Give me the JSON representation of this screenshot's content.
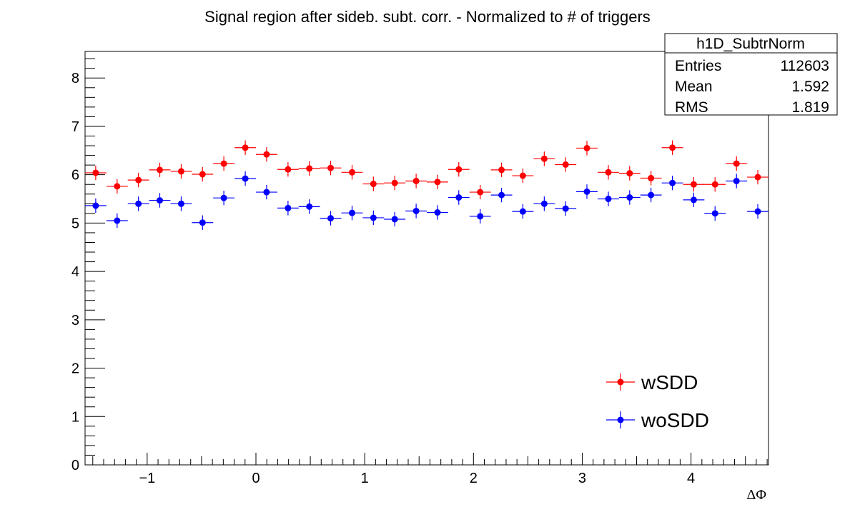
{
  "chart_data": {
    "type": "scatter",
    "title": "Signal region after sideb. subt. corr. - Normalized to # of triggers",
    "xlabel": "ΔΦ",
    "ylabel": "",
    "xlim": [
      -1.5708,
      4.7124
    ],
    "ylim": [
      0,
      8.55
    ],
    "xticks": [
      -1,
      0,
      1,
      2,
      3,
      4
    ],
    "xtick_labels": [
      "−1",
      "0",
      "1",
      "2",
      "3",
      "4"
    ],
    "yticks": [
      0,
      1,
      2,
      3,
      4,
      5,
      6,
      7,
      8
    ],
    "ytick_labels": [
      "0",
      "1",
      "2",
      "3",
      "4",
      "5",
      "6",
      "7",
      "8"
    ],
    "grid": false,
    "legend_position": "bottom-right",
    "stats_box": {
      "name": "h1D_SubtrNorm",
      "rows": [
        {
          "label": "Entries",
          "value": "112603"
        },
        {
          "label": "Mean",
          "value": "1.592"
        },
        {
          "label": "RMS",
          "value": "1.819"
        }
      ]
    },
    "bin_width": 0.1963,
    "x": [
      -1.473,
      -1.276,
      -1.08,
      -0.884,
      -0.687,
      -0.491,
      -0.295,
      -0.098,
      0.098,
      0.295,
      0.491,
      0.687,
      0.884,
      1.08,
      1.276,
      1.473,
      1.669,
      1.865,
      2.062,
      2.258,
      2.454,
      2.651,
      2.847,
      3.043,
      3.24,
      3.436,
      3.632,
      3.829,
      4.025,
      4.221,
      4.418,
      4.614
    ],
    "series": [
      {
        "name": "wSDD",
        "color": "#ff0000",
        "values": [
          6.04,
          5.76,
          5.89,
          6.1,
          6.07,
          6.01,
          6.23,
          6.56,
          6.42,
          6.11,
          6.13,
          6.14,
          6.05,
          5.81,
          5.83,
          5.87,
          5.85,
          6.11,
          5.64,
          6.1,
          5.98,
          6.33,
          6.21,
          6.55,
          6.05,
          6.03,
          5.93,
          6.56,
          5.8,
          5.8,
          6.23,
          5.95
        ],
        "errors": [
          0.15,
          0.15,
          0.15,
          0.15,
          0.15,
          0.15,
          0.15,
          0.15,
          0.15,
          0.15,
          0.15,
          0.15,
          0.15,
          0.15,
          0.15,
          0.15,
          0.15,
          0.15,
          0.15,
          0.15,
          0.15,
          0.15,
          0.15,
          0.15,
          0.15,
          0.15,
          0.15,
          0.15,
          0.15,
          0.15,
          0.15,
          0.15
        ]
      },
      {
        "name": "woSDD",
        "color": "#0000ff",
        "values": [
          5.36,
          5.05,
          5.4,
          5.47,
          5.4,
          5.01,
          5.52,
          5.92,
          5.64,
          5.31,
          5.34,
          5.1,
          5.21,
          5.11,
          5.08,
          5.25,
          5.22,
          5.53,
          5.14,
          5.58,
          5.24,
          5.4,
          5.3,
          5.65,
          5.5,
          5.53,
          5.58,
          5.83,
          5.48,
          5.2,
          5.87,
          5.24
        ],
        "errors": [
          0.15,
          0.15,
          0.15,
          0.15,
          0.15,
          0.15,
          0.15,
          0.15,
          0.15,
          0.15,
          0.15,
          0.15,
          0.15,
          0.15,
          0.15,
          0.15,
          0.15,
          0.15,
          0.15,
          0.15,
          0.15,
          0.15,
          0.15,
          0.15,
          0.15,
          0.15,
          0.15,
          0.15,
          0.15,
          0.15,
          0.15,
          0.15
        ]
      }
    ]
  }
}
